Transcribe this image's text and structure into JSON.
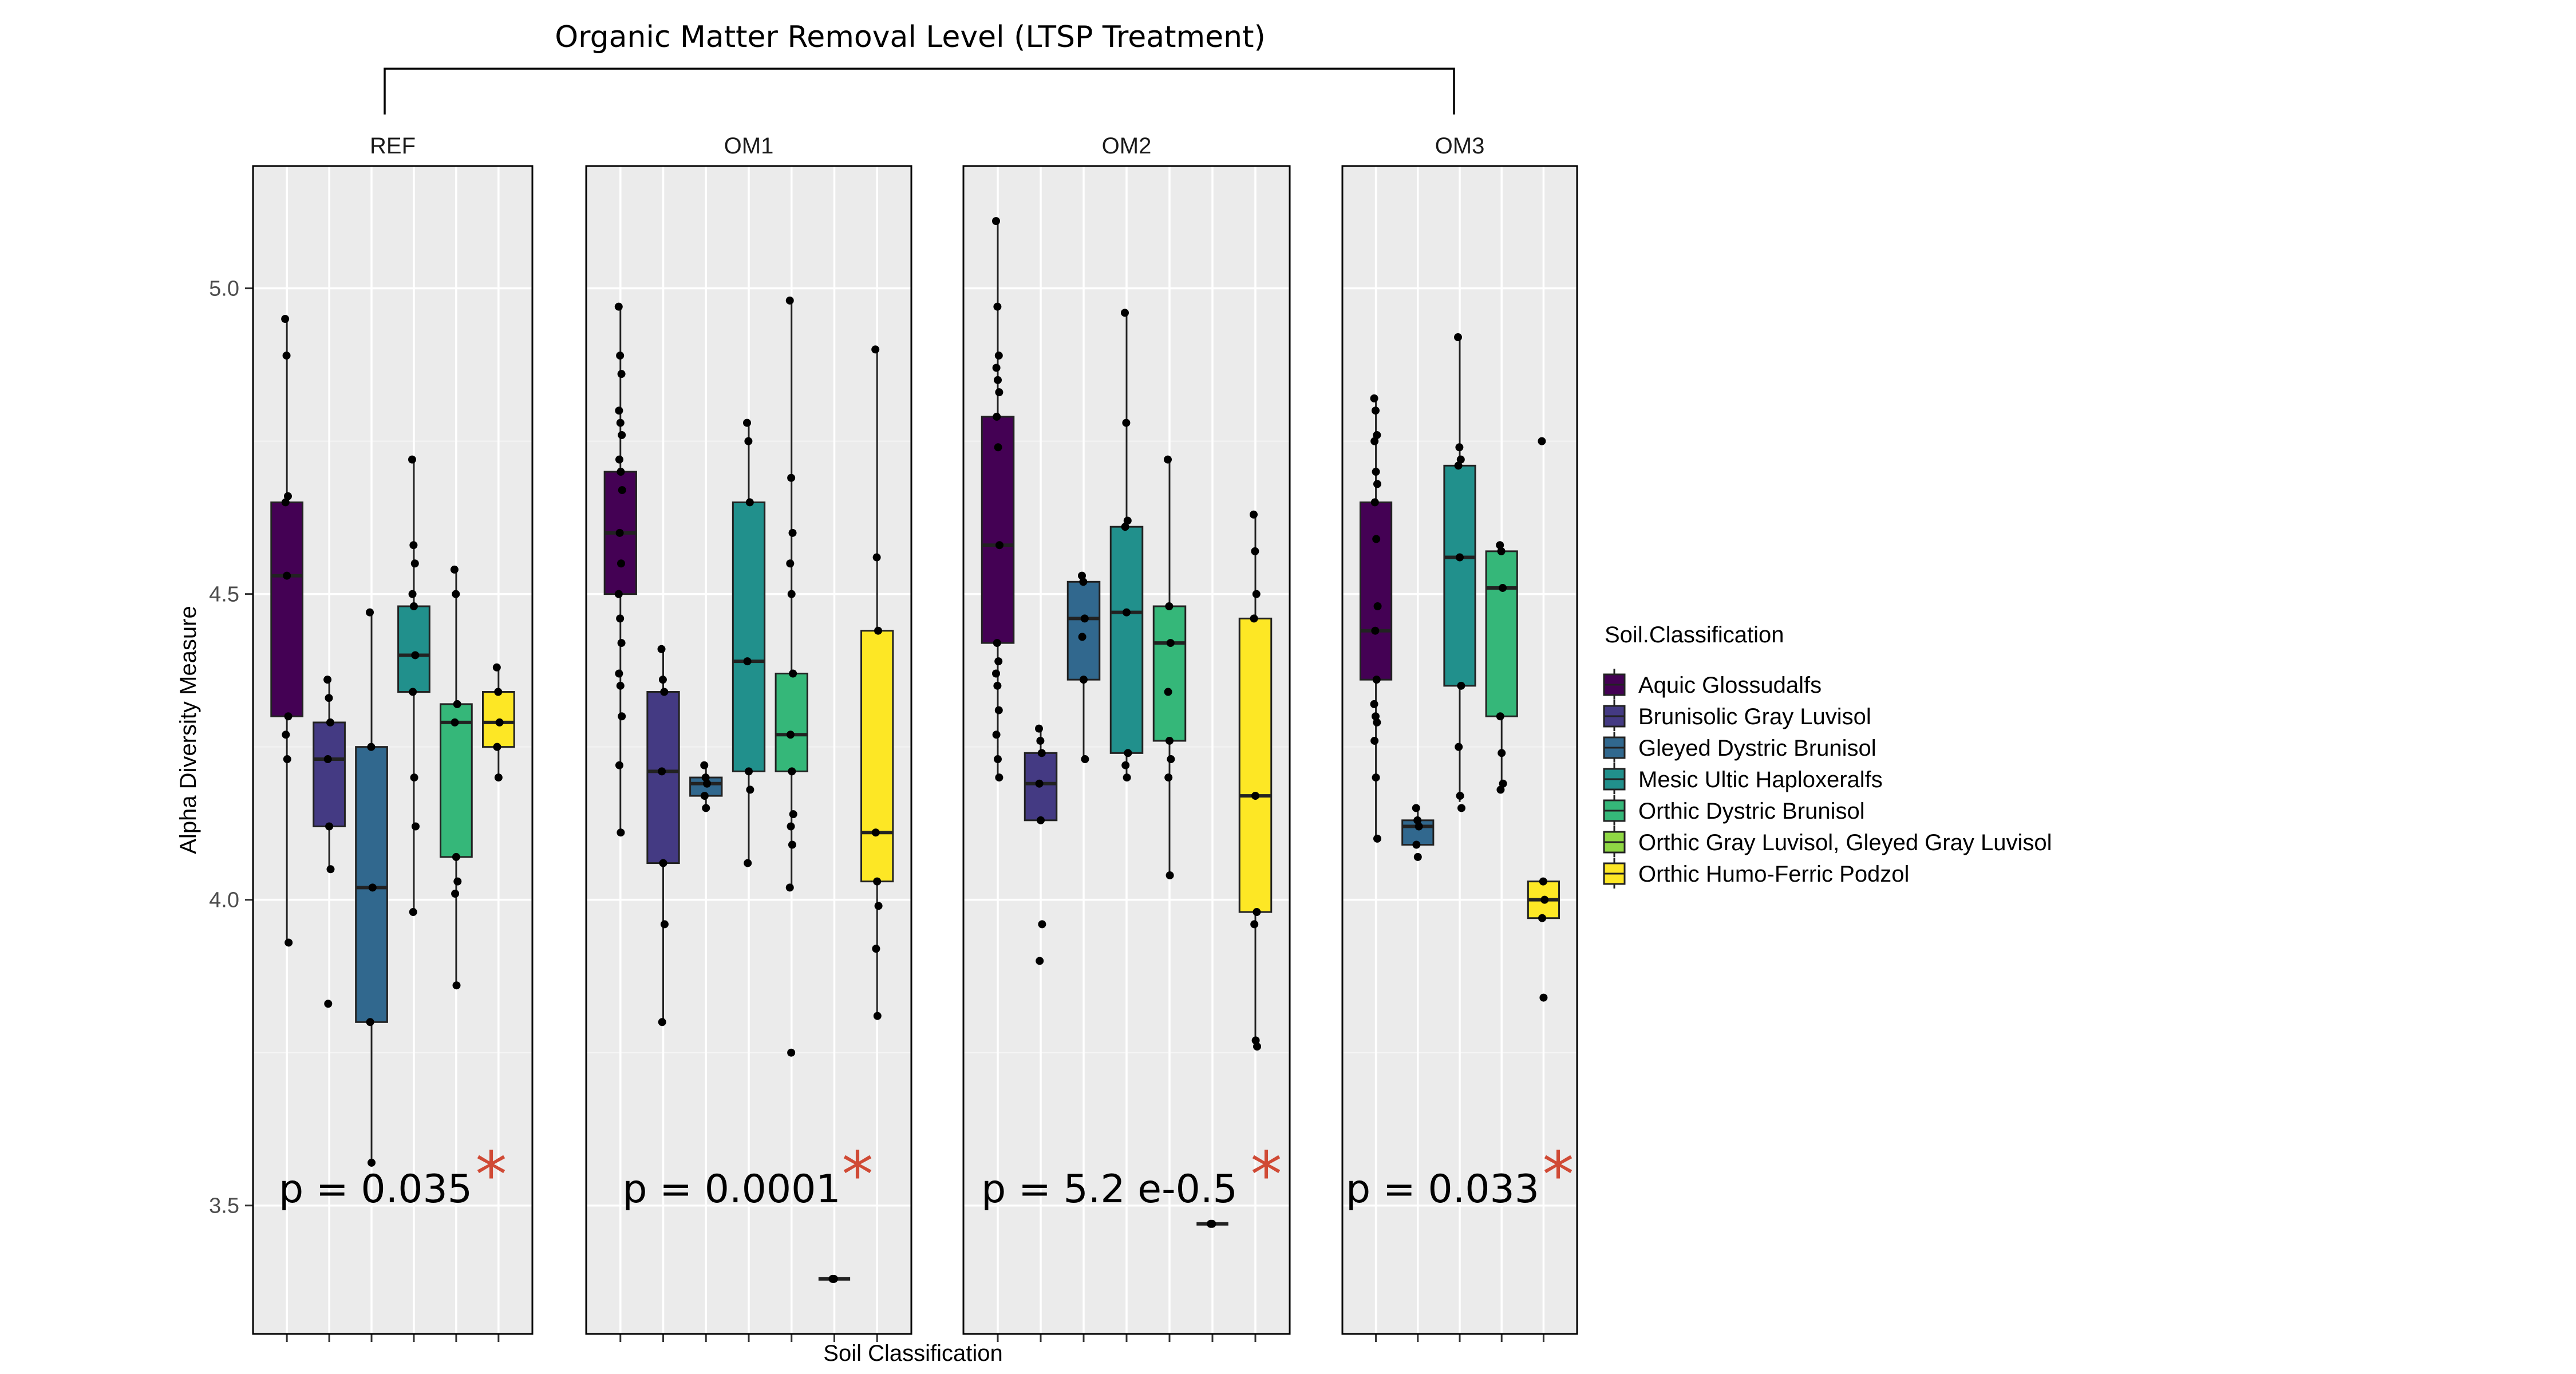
{
  "chart_data": {
    "type": "boxplot",
    "title": "Organic Matter Removal Level (LTSP Treatment)",
    "xlabel": "Soil Classification",
    "ylabel": "Alpha Diversity Measure",
    "ylim": [
      3.29,
      5.2
    ],
    "yticks": [
      3.5,
      4.0,
      4.5,
      5.0
    ],
    "ytick_labels": [
      "3.5",
      "4.0",
      "4.5",
      "5.0"
    ],
    "legend": {
      "title": "Soil.Classification",
      "position": "right",
      "entries": [
        {
          "name": "Aquic Glossudalfs",
          "color": "#440154"
        },
        {
          "name": "Brunisolic Gray Luvisol",
          "color": "#443a83"
        },
        {
          "name": "Gleyed Dystric Brunisol",
          "color": "#31688e"
        },
        {
          "name": "Mesic Ultic Haploxeralfs",
          "color": "#21908c"
        },
        {
          "name": "Orthic Dystric Brunisol",
          "color": "#35b779"
        },
        {
          "name": "Orthic Gray Luvisol, Gleyed Gray Luvisol",
          "color": "#8fd744"
        },
        {
          "name": "Orthic Humo-Ferric Podzol",
          "color": "#fde725"
        }
      ]
    },
    "panels": [
      {
        "label": "REF",
        "pvalue": "p = 0.035",
        "star": "*",
        "slots": 6,
        "boxes": [
          {
            "slot": 1,
            "cls": 0,
            "stats": [
              3.93,
              4.3,
              4.53,
              4.65,
              4.95
            ],
            "points": [
              4.95,
              4.89,
              4.66,
              4.65,
              4.53,
              4.3,
              4.27,
              4.23,
              3.93
            ]
          },
          {
            "slot": 2,
            "cls": 1,
            "stats": [
              4.05,
              4.12,
              4.23,
              4.29,
              4.36
            ],
            "points": [
              4.36,
              4.33,
              4.29,
              4.23,
              4.12,
              4.05,
              3.83
            ]
          },
          {
            "slot": 3,
            "cls": 2,
            "stats": [
              3.57,
              3.8,
              4.02,
              4.25,
              4.47
            ],
            "points": [
              4.47,
              4.25,
              4.02,
              3.8,
              3.57
            ]
          },
          {
            "slot": 4,
            "cls": 3,
            "stats": [
              3.98,
              4.34,
              4.4,
              4.48,
              4.72
            ],
            "points": [
              4.72,
              4.58,
              4.55,
              4.5,
              4.48,
              4.4,
              4.34,
              4.2,
              4.12,
              3.98
            ]
          },
          {
            "slot": 5,
            "cls": 4,
            "stats": [
              3.86,
              4.07,
              4.29,
              4.32,
              4.54
            ],
            "points": [
              4.54,
              4.5,
              4.32,
              4.29,
              4.07,
              4.03,
              4.01,
              3.86
            ]
          },
          {
            "slot": 6,
            "cls": 6,
            "stats": [
              4.2,
              4.25,
              4.29,
              4.34,
              4.38
            ],
            "points": [
              4.38,
              4.34,
              4.29,
              4.25,
              4.2
            ]
          }
        ]
      },
      {
        "label": "OM1",
        "pvalue": "p = 0.0001",
        "star": "*",
        "slots": 7,
        "boxes": [
          {
            "slot": 1,
            "cls": 0,
            "stats": [
              4.11,
              4.5,
              4.6,
              4.7,
              4.97
            ],
            "points": [
              4.97,
              4.89,
              4.86,
              4.8,
              4.78,
              4.76,
              4.72,
              4.7,
              4.67,
              4.6,
              4.55,
              4.5,
              4.46,
              4.42,
              4.37,
              4.35,
              4.3,
              4.22,
              4.11
            ]
          },
          {
            "slot": 2,
            "cls": 1,
            "stats": [
              3.8,
              4.06,
              4.21,
              4.34,
              4.41
            ],
            "points": [
              4.41,
              4.36,
              4.34,
              4.21,
              4.06,
              3.96,
              3.8
            ]
          },
          {
            "slot": 3,
            "cls": 2,
            "stats": [
              4.15,
              4.17,
              4.19,
              4.2,
              4.22
            ],
            "points": [
              4.22,
              4.2,
              4.19,
              4.17,
              4.15
            ]
          },
          {
            "slot": 4,
            "cls": 3,
            "stats": [
              4.06,
              4.21,
              4.39,
              4.65,
              4.78
            ],
            "points": [
              4.78,
              4.75,
              4.65,
              4.39,
              4.21,
              4.18,
              4.06
            ]
          },
          {
            "slot": 5,
            "cls": 4,
            "stats": [
              4.02,
              4.21,
              4.27,
              4.37,
              4.98
            ],
            "points": [
              4.98,
              4.69,
              4.6,
              4.55,
              4.5,
              4.37,
              4.27,
              4.21,
              4.14,
              4.12,
              4.09,
              4.02,
              3.75
            ]
          },
          {
            "slot": 6,
            "cls": 5,
            "stats": [
              3.38,
              3.38,
              3.38,
              3.38,
              3.38
            ],
            "points": [
              3.38,
              3.38
            ]
          },
          {
            "slot": 7,
            "cls": 6,
            "stats": [
              3.81,
              4.03,
              4.11,
              4.44,
              4.9
            ],
            "points": [
              4.9,
              4.56,
              4.44,
              4.11,
              4.03,
              3.99,
              3.92,
              3.81
            ]
          }
        ]
      },
      {
        "label": "OM2",
        "pvalue": "p = 5.2 e-0.5",
        "star": "*",
        "slots": 7,
        "boxes": [
          {
            "slot": 1,
            "cls": 0,
            "stats": [
              4.2,
              4.42,
              4.58,
              4.79,
              5.11
            ],
            "points": [
              5.11,
              4.97,
              4.89,
              4.87,
              4.85,
              4.83,
              4.79,
              4.74,
              4.58,
              4.42,
              4.39,
              4.37,
              4.35,
              4.31,
              4.27,
              4.23,
              4.2
            ]
          },
          {
            "slot": 2,
            "cls": 1,
            "stats": [
              4.13,
              4.13,
              4.19,
              4.24,
              4.28
            ],
            "points": [
              4.28,
              4.26,
              4.24,
              4.19,
              4.13,
              3.96,
              3.9
            ]
          },
          {
            "slot": 3,
            "cls": 2,
            "stats": [
              4.23,
              4.36,
              4.46,
              4.52,
              4.53
            ],
            "points": [
              4.53,
              4.52,
              4.46,
              4.43,
              4.36,
              4.23
            ]
          },
          {
            "slot": 4,
            "cls": 3,
            "stats": [
              4.2,
              4.24,
              4.47,
              4.61,
              4.96
            ],
            "points": [
              4.96,
              4.78,
              4.62,
              4.61,
              4.47,
              4.24,
              4.22,
              4.2
            ]
          },
          {
            "slot": 5,
            "cls": 4,
            "stats": [
              4.04,
              4.26,
              4.42,
              4.48,
              4.72
            ],
            "points": [
              4.72,
              4.48,
              4.42,
              4.34,
              4.26,
              4.23,
              4.2,
              4.04
            ]
          },
          {
            "slot": 6,
            "cls": 5,
            "stats": [
              3.47,
              3.47,
              3.47,
              3.47,
              3.47
            ],
            "points": [
              3.47,
              3.47
            ]
          },
          {
            "slot": 7,
            "cls": 6,
            "stats": [
              3.77,
              3.98,
              4.17,
              4.46,
              4.63
            ],
            "points": [
              4.63,
              4.57,
              4.5,
              4.46,
              4.17,
              3.98,
              3.96,
              3.77,
              3.76
            ]
          }
        ]
      },
      {
        "label": "OM3",
        "pvalue": "p = 0.033",
        "star": "*",
        "slots": 5,
        "boxes": [
          {
            "slot": 1,
            "cls": 0,
            "stats": [
              4.1,
              4.36,
              4.44,
              4.65,
              4.82
            ],
            "points": [
              4.82,
              4.8,
              4.76,
              4.75,
              4.7,
              4.68,
              4.65,
              4.59,
              4.48,
              4.44,
              4.36,
              4.32,
              4.3,
              4.29,
              4.26,
              4.2,
              4.1
            ]
          },
          {
            "slot": 2,
            "cls": 2,
            "stats": [
              4.09,
              4.09,
              4.12,
              4.13,
              4.15
            ],
            "points": [
              4.15,
              4.13,
              4.12,
              4.09,
              4.07
            ]
          },
          {
            "slot": 3,
            "cls": 3,
            "stats": [
              4.16,
              4.35,
              4.56,
              4.71,
              4.92
            ],
            "points": [
              4.92,
              4.74,
              4.72,
              4.71,
              4.56,
              4.35,
              4.25,
              4.17,
              4.15
            ]
          },
          {
            "slot": 4,
            "cls": 4,
            "stats": [
              4.18,
              4.3,
              4.51,
              4.57,
              4.58
            ],
            "points": [
              4.58,
              4.57,
              4.51,
              4.3,
              4.24,
              4.19,
              4.18
            ]
          },
          {
            "slot": 5,
            "cls": 6,
            "stats": [
              3.97,
              3.97,
              4.0,
              4.03,
              4.03
            ],
            "points": [
              4.75,
              4.03,
              4.0,
              3.97,
              3.84
            ]
          }
        ]
      }
    ]
  }
}
